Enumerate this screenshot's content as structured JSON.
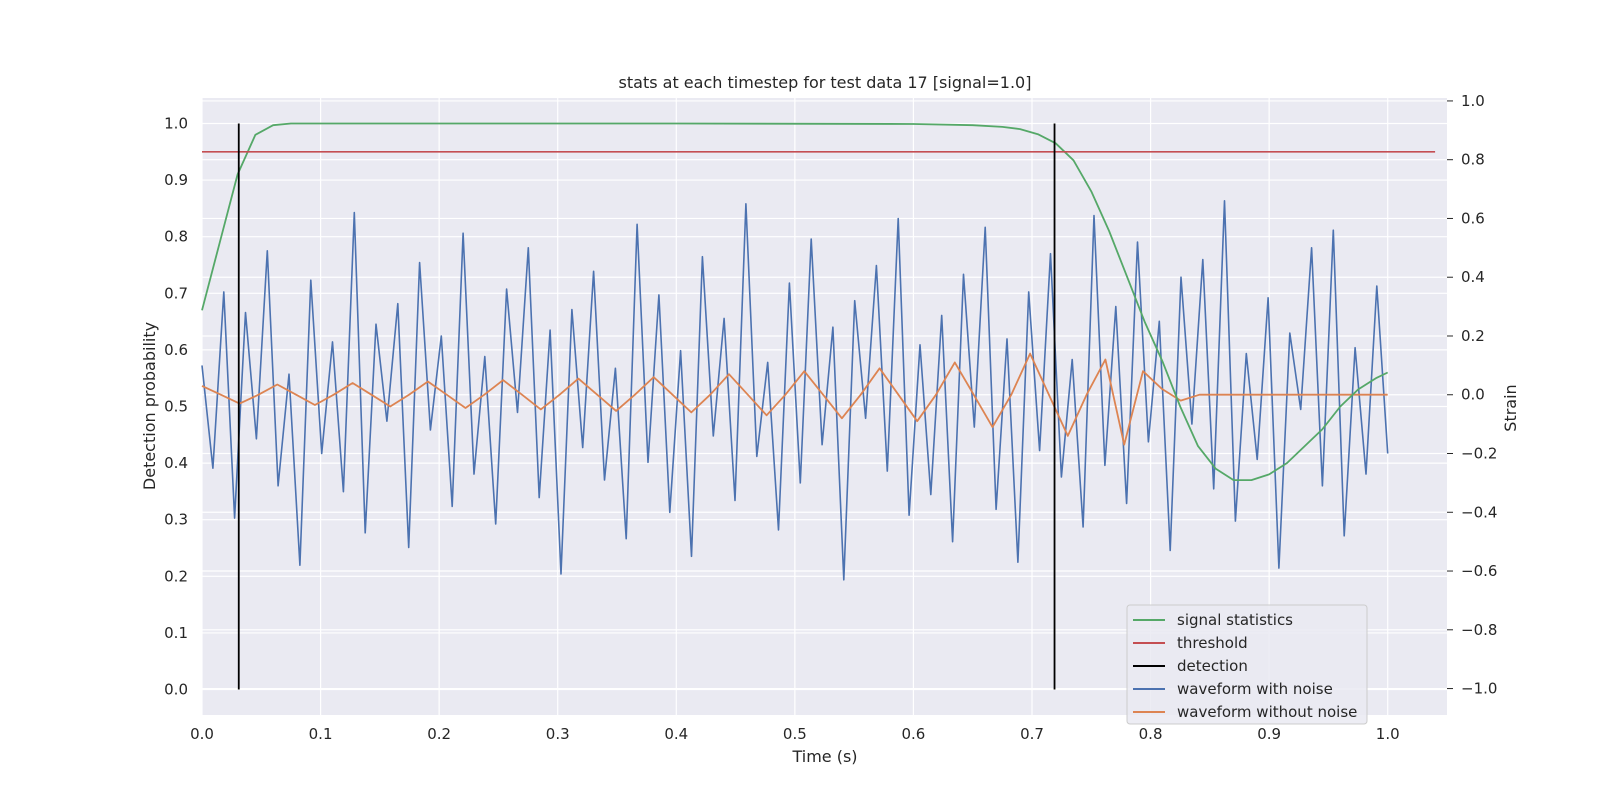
{
  "chart_data": {
    "type": "line",
    "title": "stats at each timestep for test data 17 [signal=1.0]",
    "xlabel": "Time (s)",
    "ylabel_left": "Detection probability",
    "ylabel_right": "Strain",
    "xlim": [
      0.0,
      1.05
    ],
    "ylim_left": [
      -0.045,
      1.045
    ],
    "ylim_right": [
      -1.09,
      1.01
    ],
    "x_ticks": [
      "0.0",
      "0.1",
      "0.2",
      "0.3",
      "0.4",
      "0.5",
      "0.6",
      "0.7",
      "0.8",
      "0.9",
      "1.0"
    ],
    "y_ticks_left": [
      "0.0",
      "0.1",
      "0.2",
      "0.3",
      "0.4",
      "0.5",
      "0.6",
      "0.7",
      "0.8",
      "0.9",
      "1.0"
    ],
    "y_ticks_right": [
      "−1.0",
      "−0.8",
      "−0.6",
      "−0.4",
      "−0.2",
      "0.0",
      "0.2",
      "0.4",
      "0.6",
      "0.8",
      "1.0"
    ],
    "grid": true,
    "legend_position": "lower-right",
    "colors": {
      "signal_statistics": "#55a868",
      "threshold": "#c44e52",
      "detection": "#000000",
      "waveform_with_noise": "#4c72b0",
      "waveform_without_noise": "#dd8452",
      "plot_background": "#eaeaf2",
      "grid": "#ffffff"
    },
    "series": [
      {
        "name": "signal statistics",
        "axis": "left",
        "x": [
          0.0,
          0.015,
          0.03,
          0.045,
          0.06,
          0.075,
          0.09,
          0.2,
          0.4,
          0.6,
          0.65,
          0.675,
          0.69,
          0.705,
          0.72,
          0.735,
          0.75,
          0.765,
          0.78,
          0.795,
          0.81,
          0.825,
          0.84,
          0.855,
          0.87,
          0.885,
          0.9,
          0.915,
          0.93,
          0.945,
          0.96,
          0.975,
          0.99,
          1.0
        ],
        "y": [
          0.67,
          0.79,
          0.91,
          0.98,
          0.997,
          1.0,
          1.0,
          1.0,
          1.0,
          0.999,
          0.997,
          0.994,
          0.99,
          0.981,
          0.965,
          0.935,
          0.88,
          0.81,
          0.73,
          0.65,
          0.58,
          0.5,
          0.43,
          0.39,
          0.37,
          0.37,
          0.38,
          0.4,
          0.43,
          0.46,
          0.5,
          0.53,
          0.55,
          0.56
        ]
      },
      {
        "name": "threshold",
        "axis": "left",
        "x": [
          0.0,
          1.04
        ],
        "y": [
          0.95,
          0.95
        ]
      },
      {
        "name": "detection",
        "axis": "left",
        "x": [
          0.031,
          0.031,
          0.719,
          0.719
        ],
        "y": [
          0.0,
          1.0,
          0.0,
          1.0
        ]
      },
      {
        "name": "waveform with noise",
        "axis": "right",
        "x_range": [
          0.0,
          1.0
        ],
        "y": [
          0.1,
          -0.25,
          0.35,
          -0.42,
          0.28,
          -0.15,
          0.49,
          -0.31,
          0.07,
          -0.58,
          0.39,
          -0.2,
          0.18,
          -0.33,
          0.62,
          -0.47,
          0.24,
          -0.09,
          0.31,
          -0.52,
          0.45,
          -0.12,
          0.2,
          -0.38,
          0.55,
          -0.27,
          0.13,
          -0.44,
          0.36,
          -0.06,
          0.5,
          -0.35,
          0.22,
          -0.61,
          0.29,
          -0.18,
          0.42,
          -0.29,
          0.09,
          -0.49,
          0.58,
          -0.23,
          0.34,
          -0.4,
          0.15,
          -0.55,
          0.47,
          -0.14,
          0.26,
          -0.36,
          0.65,
          -0.21,
          0.11,
          -0.46,
          0.38,
          -0.3,
          0.53,
          -0.17,
          0.23,
          -0.63,
          0.32,
          -0.08,
          0.44,
          -0.26,
          0.6,
          -0.41,
          0.17,
          -0.34,
          0.27,
          -0.5,
          0.41,
          -0.11,
          0.57,
          -0.39,
          0.19,
          -0.57,
          0.35,
          -0.19,
          0.48,
          -0.28,
          0.12,
          -0.45,
          0.61,
          -0.24,
          0.3,
          -0.37,
          0.52,
          -0.16,
          0.25,
          -0.53,
          0.4,
          -0.1,
          0.46,
          -0.32,
          0.66,
          -0.43,
          0.14,
          -0.22,
          0.33,
          -0.59,
          0.21,
          -0.05,
          0.5,
          -0.31,
          0.56,
          -0.48,
          0.16,
          -0.27,
          0.37,
          -0.2
        ]
      },
      {
        "name": "waveform without noise",
        "axis": "right",
        "x_range": [
          0.0,
          1.0
        ],
        "y": [
          0.03,
          0.0,
          -0.03,
          0.0,
          0.035,
          0.0,
          -0.035,
          0.0,
          0.04,
          0.0,
          -0.04,
          0.0,
          0.045,
          0.0,
          -0.045,
          0.0,
          0.05,
          0.0,
          -0.05,
          0.0,
          0.055,
          0.0,
          -0.055,
          0.0,
          0.06,
          0.0,
          -0.06,
          0.0,
          0.07,
          0.0,
          -0.07,
          0.0,
          0.08,
          0.0,
          -0.08,
          0.0,
          0.09,
          0.0,
          -0.09,
          0.0,
          0.11,
          0.0,
          -0.11,
          0.0,
          0.14,
          0.0,
          -0.14,
          0.0,
          0.12,
          -0.17,
          0.08,
          0.02,
          -0.02,
          0.0,
          0.0,
          0.0,
          0.0,
          0.0,
          0.0,
          0.0,
          0.0,
          0.0,
          0.0,
          0.0
        ]
      }
    ]
  }
}
